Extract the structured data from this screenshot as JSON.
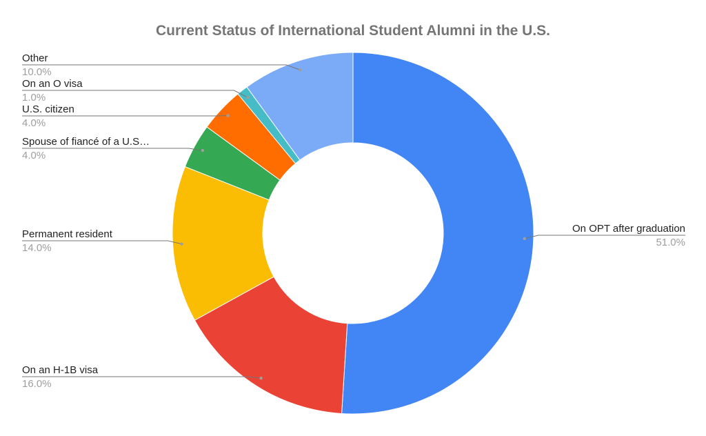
{
  "chart_data": {
    "type": "pie",
    "donut": true,
    "title": "Current Status of International Student Alumni in the U.S.",
    "legend": "none",
    "slices": [
      {
        "name": "On OPT after graduation",
        "label": "On OPT after graduation",
        "value": 51.0,
        "value_label": "51.0%",
        "color": "#4285F4"
      },
      {
        "name": "On an H-1B visa",
        "label": "On an H-1B visa",
        "value": 16.0,
        "value_label": "16.0%",
        "color": "#EA4335"
      },
      {
        "name": "Permanent resident",
        "label": "Permanent resident",
        "value": 14.0,
        "value_label": "14.0%",
        "color": "#FBBC04"
      },
      {
        "name": "Spouse of fiancé of a U.S. citizen",
        "label": "Spouse of fiancé of a U.S…",
        "value": 4.0,
        "value_label": "4.0%",
        "color": "#34A853"
      },
      {
        "name": "U.S. citizen",
        "label": "U.S. citizen",
        "value": 4.0,
        "value_label": "4.0%",
        "color": "#FF6D01"
      },
      {
        "name": "On an O visa",
        "label": "On an O visa",
        "value": 1.0,
        "value_label": "1.0%",
        "color": "#46BDC6"
      },
      {
        "name": "Other",
        "label": "Other",
        "value": 10.0,
        "value_label": "10.0%",
        "color": "#7BAAF7"
      }
    ]
  }
}
